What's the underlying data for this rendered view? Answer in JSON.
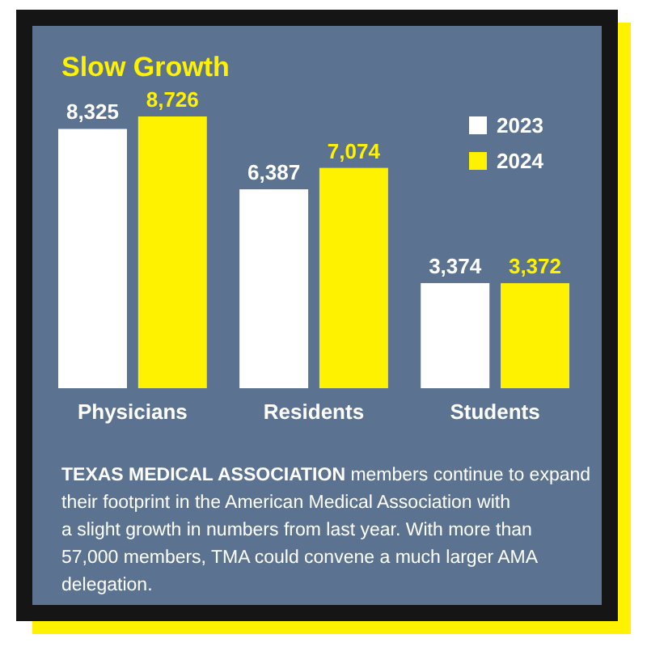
{
  "chart_data": {
    "type": "bar",
    "title": "Slow Growth",
    "categories": [
      "Physicians",
      "Residents",
      "Students"
    ],
    "series": [
      {
        "name": "2023",
        "color": "#ffffff",
        "values": [
          8325,
          6387,
          3374
        ],
        "value_labels": [
          "8,325",
          "6,387",
          "3,374"
        ]
      },
      {
        "name": "2024",
        "color": "#fff200",
        "values": [
          8726,
          7074,
          3372
        ],
        "value_labels": [
          "8,726",
          "7,074",
          "3,372"
        ]
      }
    ],
    "legend": "top right",
    "annotations": [
      "TEXAS MEDICAL ASSOCIATION",
      "members continue to expand their footprint in the American Medical Association with a slight growth in numbers from last year. With more than 57,000 members, TMA could convene a much larger AMA delegation."
    ]
  }
}
